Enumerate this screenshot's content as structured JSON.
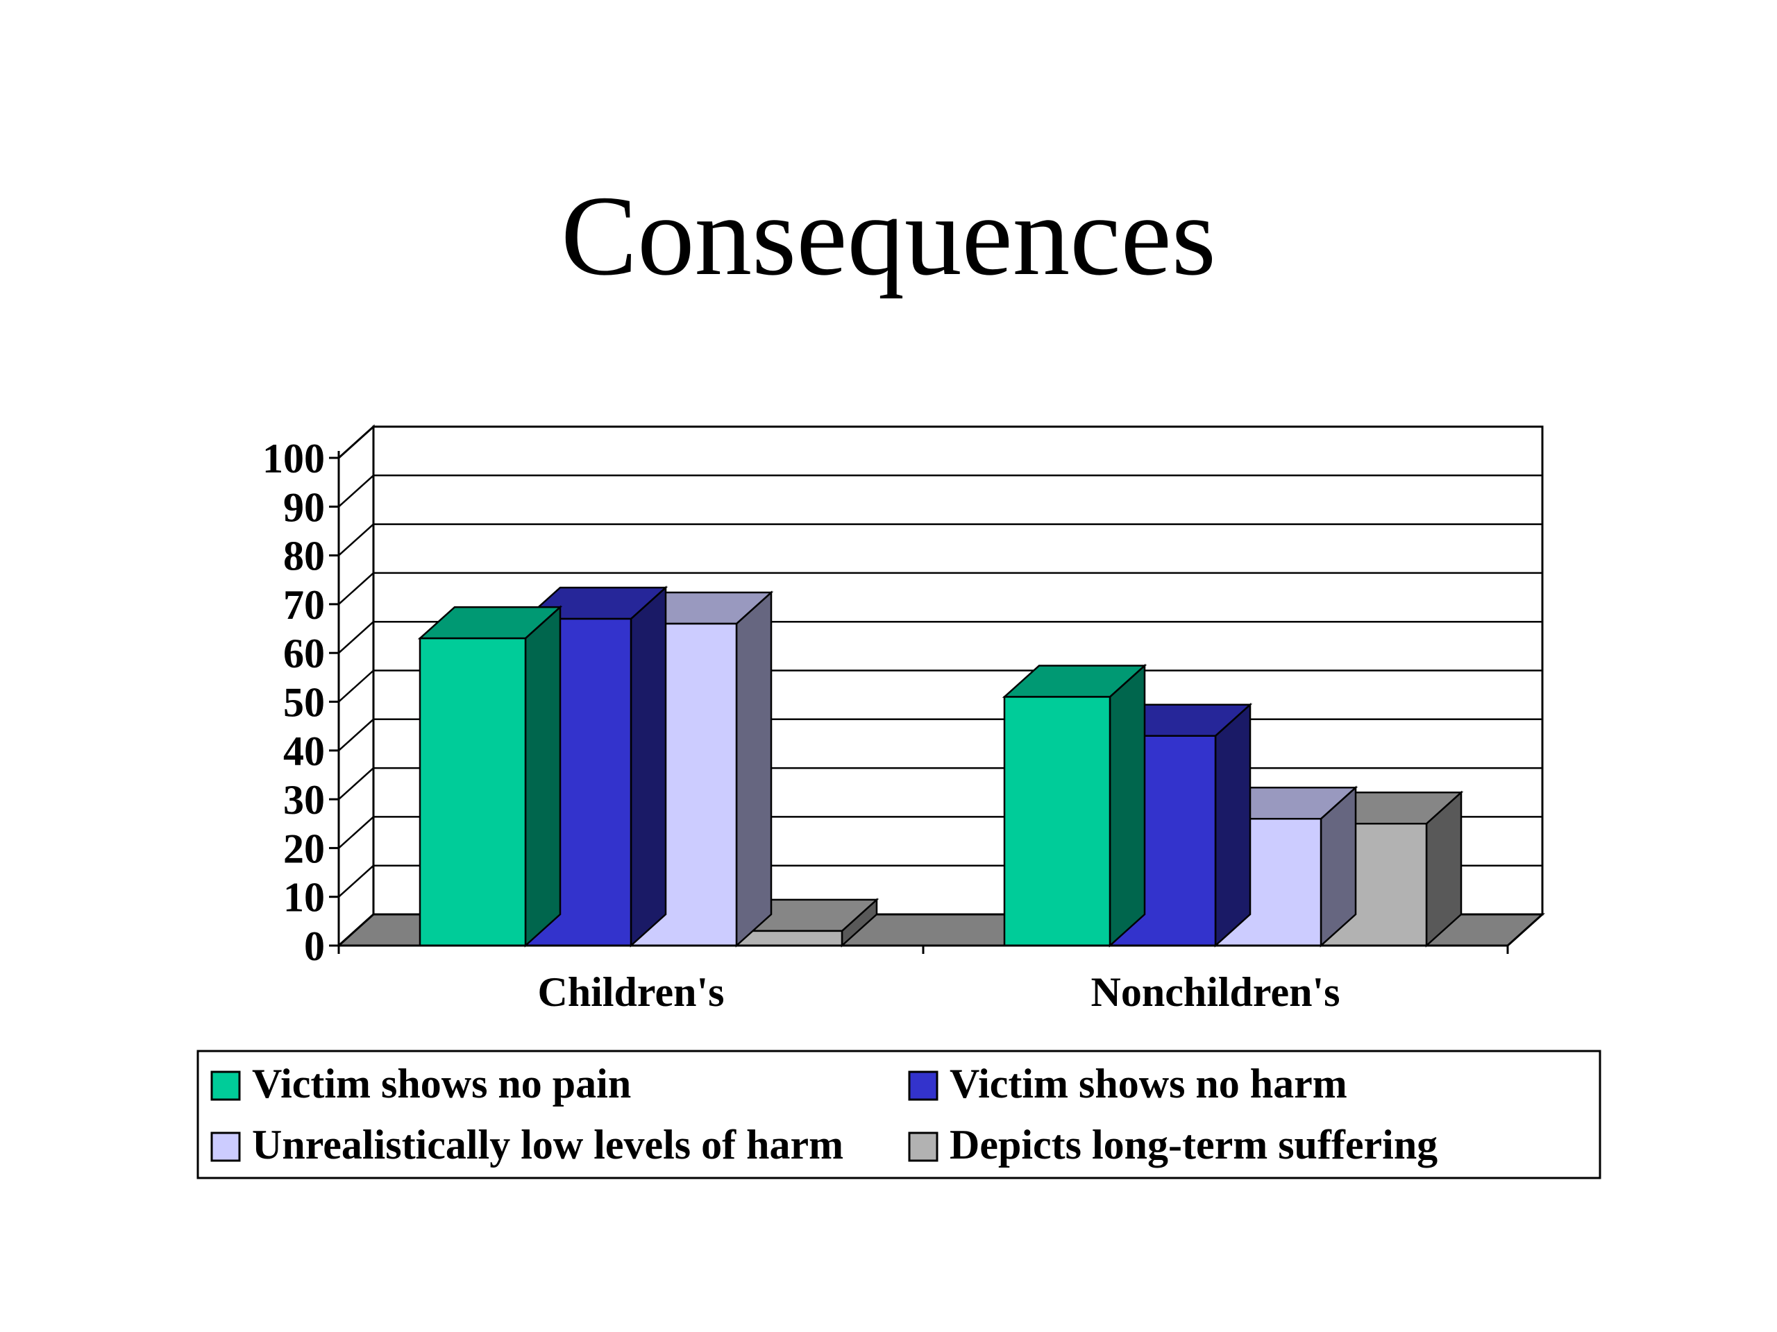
{
  "chart_data": {
    "type": "bar",
    "title": "Consequences",
    "categories": [
      "Children's",
      "Nonchildren's"
    ],
    "series": [
      {
        "name": "Victim shows no pain",
        "values": [
          63,
          51
        ],
        "color": "#00CC99"
      },
      {
        "name": "Victim shows no harm",
        "values": [
          67,
          43
        ],
        "color": "#3333CC"
      },
      {
        "name": "Unrealistically low levels of harm",
        "values": [
          66,
          26
        ],
        "color": "#CCCCFF"
      },
      {
        "name": "Depicts long-term suffering",
        "values": [
          3,
          25
        ],
        "color": "#B2B2B2"
      }
    ],
    "yticks": [
      "0",
      "10",
      "20",
      "30",
      "40",
      "50",
      "60",
      "70",
      "80",
      "90",
      "100"
    ],
    "ylim": [
      0,
      100
    ],
    "grid": true,
    "legend_position": "bottom",
    "xlabel": "",
    "ylabel": ""
  }
}
